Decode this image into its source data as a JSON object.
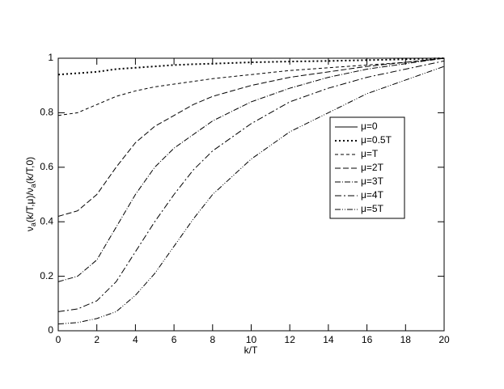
{
  "chart_data": {
    "type": "line",
    "xlabel": "k/T",
    "ylabel": [
      "ν",
      "a",
      "(k/T,μ)/ν",
      "a",
      "(k/T,0)"
    ],
    "x": [
      0,
      1,
      2,
      3,
      4,
      5,
      6,
      7,
      8,
      10,
      12,
      14,
      16,
      18,
      20
    ],
    "series": [
      {
        "name": "μ=0",
        "color": "#000000",
        "dash": "none",
        "values": [
          1,
          1,
          1,
          1,
          1,
          1,
          1,
          1,
          1,
          1,
          1,
          1,
          1,
          1,
          1
        ]
      },
      {
        "name": "μ=0.5T",
        "color": "#000000",
        "dash": "2 3",
        "values": [
          0.94,
          0.945,
          0.95,
          0.96,
          0.965,
          0.97,
          0.975,
          0.978,
          0.98,
          0.985,
          0.988,
          0.99,
          0.993,
          0.996,
          1
        ]
      },
      {
        "name": "μ=T",
        "color": "#000000",
        "dash": "4 3",
        "values": [
          0.79,
          0.8,
          0.83,
          0.86,
          0.88,
          0.895,
          0.905,
          0.915,
          0.925,
          0.94,
          0.955,
          0.965,
          0.975,
          0.985,
          1
        ]
      },
      {
        "name": "μ=2T",
        "color": "#000000",
        "dash": "7 3",
        "values": [
          0.42,
          0.44,
          0.5,
          0.6,
          0.69,
          0.75,
          0.79,
          0.83,
          0.86,
          0.9,
          0.93,
          0.95,
          0.97,
          0.985,
          1
        ]
      },
      {
        "name": "μ=3T",
        "color": "#000000",
        "dash": "7 2 1 2",
        "values": [
          0.18,
          0.2,
          0.26,
          0.38,
          0.5,
          0.6,
          0.67,
          0.72,
          0.77,
          0.84,
          0.89,
          0.93,
          0.96,
          0.98,
          1
        ]
      },
      {
        "name": "μ=4T",
        "color": "#000000",
        "dash": "8 3 2 3",
        "values": [
          0.07,
          0.08,
          0.11,
          0.18,
          0.29,
          0.4,
          0.5,
          0.59,
          0.66,
          0.76,
          0.84,
          0.89,
          0.93,
          0.96,
          0.99
        ]
      },
      {
        "name": "μ=5T",
        "color": "#000000",
        "dash": "7 2 1 2 1 2",
        "values": [
          0.025,
          0.03,
          0.045,
          0.07,
          0.13,
          0.21,
          0.31,
          0.41,
          0.5,
          0.63,
          0.73,
          0.8,
          0.87,
          0.92,
          0.97
        ]
      }
    ],
    "xlim": [
      0,
      20
    ],
    "xticks": [
      0,
      2,
      4,
      6,
      8,
      10,
      12,
      14,
      16,
      18,
      20
    ],
    "ylim": [
      0,
      1
    ],
    "yticks": [
      0,
      0.2,
      0.4,
      0.6,
      0.8,
      1
    ],
    "legend": "right"
  }
}
